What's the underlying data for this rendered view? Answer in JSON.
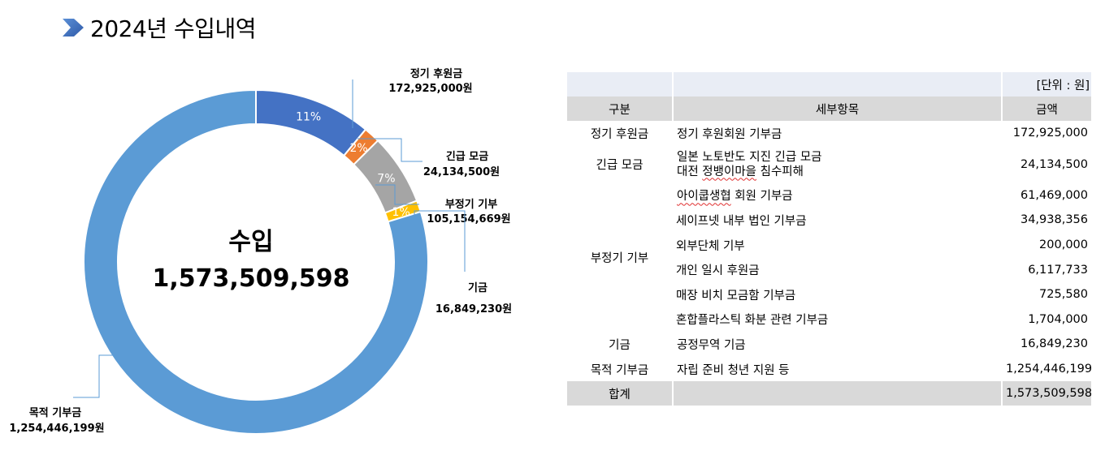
{
  "page_title": "2024년 수입내역",
  "chart_data": {
    "type": "pie",
    "donut": true,
    "center_label": "수입",
    "center_value": "1,573,509,598",
    "slices": [
      {
        "name": "정기 후원금",
        "value": 172925000,
        "value_label": "172,925,000원",
        "percent_label": "11%",
        "color": "#4472c4"
      },
      {
        "name": "긴급 모금",
        "value": 24134500,
        "value_label": "24,134,500원",
        "percent_label": "2%",
        "color": "#ed7d31"
      },
      {
        "name": "부정기 기부",
        "value": 105154669,
        "value_label": "105,154,669원",
        "percent_label": "7%",
        "color": "#a5a5a5"
      },
      {
        "name": "기금",
        "value": 16849230,
        "value_label": "16,849,230원",
        "percent_label": "1%",
        "color": "#ffc000"
      },
      {
        "name": "목적 기부금",
        "value": 1254446199,
        "value_label": "1,254,446,199원",
        "percent_label": "80%",
        "color": "#5b9bd5"
      }
    ]
  },
  "table": {
    "unit": "[단위 : 원]",
    "headers": [
      "구분",
      "세부항목",
      "금액"
    ],
    "rows": [
      {
        "category": "정기 후원금",
        "details": [
          {
            "name": "정기 후원회원 기부금",
            "amount": "172,925,000"
          }
        ]
      },
      {
        "category": "긴급 모금",
        "details": [
          {
            "name": "일본 노토반도 지진 긴급 모금",
            "name2": "대전 정뱅이마을 침수피해",
            "amount": "24,134,500"
          }
        ]
      },
      {
        "category": "부정기 기부",
        "details": [
          {
            "name": "아이쿱생협 회원 기부금",
            "amount": "61,469,000"
          },
          {
            "name": "세이프넷 내부 법인 기부금",
            "amount": "34,938,356"
          },
          {
            "name": "외부단체 기부",
            "amount": "200,000"
          },
          {
            "name": "개인 일시 후원금",
            "amount": "6,117,733"
          },
          {
            "name": "매장 비치 모금함 기부금",
            "amount": "725,580"
          },
          {
            "name": "혼합플라스틱 화분 관련 기부금",
            "amount": "1,704,000"
          }
        ]
      },
      {
        "category": "기금",
        "details": [
          {
            "name": "공정무역 기금",
            "amount": "16,849,230"
          }
        ]
      },
      {
        "category": "목적 기부금",
        "details": [
          {
            "name": "자립 준비 청년 지원 등",
            "amount": "1,254,446,199"
          }
        ]
      }
    ],
    "total_label": "합계",
    "total_amount": "1,573,509,598"
  }
}
